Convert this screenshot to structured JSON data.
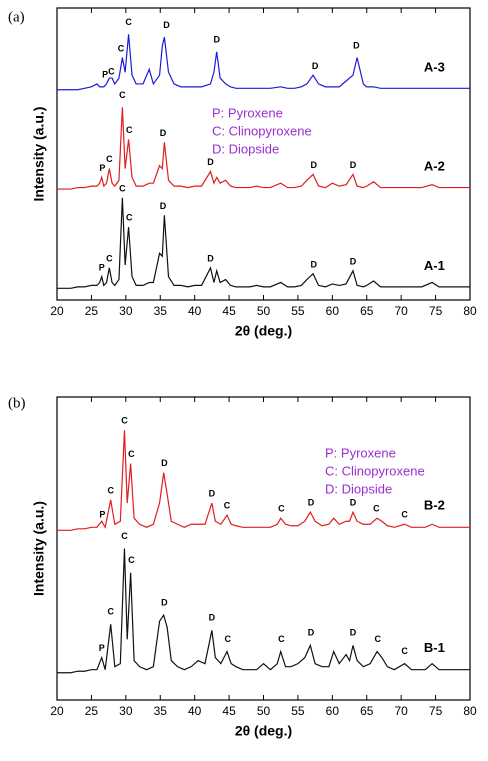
{
  "chart_data": [
    {
      "type": "line",
      "panel_label": "(a)",
      "xlabel": "2θ (deg.)",
      "ylabel": "Intensity (a.u.)",
      "xlim": [
        20,
        80
      ],
      "xticks": [
        20,
        25,
        30,
        35,
        40,
        45,
        50,
        55,
        60,
        65,
        70,
        75,
        80
      ],
      "ylim": [
        0,
        100
      ],
      "key": [
        "P: Pyroxene",
        "C: Clinopyroxene",
        "D: Diopside"
      ],
      "x": [
        20,
        21,
        22,
        23,
        24,
        25,
        25.8,
        26.2,
        26.5,
        26.8,
        27.2,
        27.6,
        28.0,
        28.4,
        29.0,
        29.5,
        29.9,
        30.4,
        30.9,
        31.5,
        32.5,
        33.4,
        34.0,
        34.9,
        35.3,
        35.6,
        36.2,
        37,
        38,
        39,
        40,
        41,
        42.3,
        42.8,
        43.2,
        43.7,
        44.5,
        45.2,
        46,
        47,
        48,
        49,
        50,
        51,
        52.5,
        53.5,
        54.5,
        55.5,
        56.3,
        57.2,
        58,
        59,
        60,
        61,
        62,
        63,
        63.6,
        64.5,
        65,
        66,
        67,
        68,
        69,
        70,
        71,
        72,
        73,
        74.5,
        75.5,
        76,
        77,
        78,
        79,
        80
      ],
      "series": [
        {
          "name": "A-3",
          "color": "#1c1cd8",
          "values": [
            72,
            72,
            72,
            72,
            72.5,
            73,
            74,
            73,
            73,
            73,
            74,
            76,
            76,
            74,
            76,
            83,
            78,
            91,
            77,
            74,
            74,
            79,
            74,
            77,
            87,
            90,
            78,
            74,
            73,
            73,
            73,
            73,
            74,
            78,
            85,
            76,
            74,
            73,
            72.5,
            72.5,
            72.5,
            72.5,
            72.5,
            72.5,
            73,
            72.5,
            72.5,
            73,
            74,
            77,
            74,
            73,
            73,
            73,
            75,
            77,
            83,
            74,
            73,
            73,
            72.5,
            72.5,
            72.5,
            72.5,
            72.5,
            72.5,
            72.5,
            72.5,
            72.5,
            72.5,
            72.5,
            72.5,
            72.5,
            72.5
          ]
        },
        {
          "name": "A-2",
          "color": "#e01e1e",
          "values": [
            38,
            38,
            38,
            38.5,
            38.5,
            39,
            39,
            40,
            42,
            39,
            40,
            45,
            40,
            39,
            41,
            66,
            45,
            55,
            42,
            39,
            39,
            40,
            40,
            46,
            45,
            54,
            41,
            39,
            39,
            38.5,
            39,
            39,
            44,
            40,
            42,
            40,
            41,
            39,
            38.5,
            38.5,
            38.5,
            39,
            38.5,
            38.5,
            40,
            38.5,
            38.5,
            39,
            41,
            43,
            39,
            38.5,
            40,
            39,
            39.5,
            43,
            39,
            38.5,
            39,
            40.5,
            38.5,
            38.5,
            38.5,
            38.5,
            38.5,
            38.5,
            38.5,
            39.5,
            38.5,
            38.5,
            38.5,
            38.5,
            38.5,
            38.5
          ]
        },
        {
          "name": "A-1",
          "color": "#111111",
          "values": [
            4,
            4,
            4,
            4.5,
            4.5,
            5,
            5,
            6,
            8,
            5,
            6,
            11,
            6,
            5,
            7,
            35,
            12,
            25,
            8,
            5,
            5,
            6,
            6,
            16,
            15,
            29,
            8,
            5,
            5,
            4.5,
            5,
            5,
            11,
            6,
            10,
            6,
            7,
            5,
            4.5,
            4.5,
            4.5,
            5,
            4.5,
            4.5,
            6,
            4.5,
            4.5,
            5,
            7,
            9,
            5,
            4.5,
            5.5,
            5,
            5.5,
            10,
            5,
            4.5,
            5,
            6.5,
            4.5,
            4.5,
            4.5,
            4.5,
            4.5,
            4.5,
            4.5,
            6,
            4.5,
            4.5,
            4.5,
            4.5,
            4.5,
            4.5
          ]
        }
      ],
      "annotations": [
        {
          "text": "P",
          "x": 27.0,
          "y": 77
        },
        {
          "text": "C",
          "x": 27.9,
          "y": 78
        },
        {
          "text": "C",
          "x": 29.3,
          "y": 86
        },
        {
          "text": "C",
          "x": 30.4,
          "y": 95
        },
        {
          "text": "D",
          "x": 35.9,
          "y": 94
        },
        {
          "text": "D",
          "x": 43.2,
          "y": 89
        },
        {
          "text": "D",
          "x": 57.5,
          "y": 80
        },
        {
          "text": "D",
          "x": 63.5,
          "y": 87
        },
        {
          "text": "P",
          "x": 26.6,
          "y": 45
        },
        {
          "text": "C",
          "x": 27.6,
          "y": 48
        },
        {
          "text": "C",
          "x": 29.5,
          "y": 70
        },
        {
          "text": "C",
          "x": 30.5,
          "y": 58
        },
        {
          "text": "D",
          "x": 35.4,
          "y": 57
        },
        {
          "text": "D",
          "x": 42.3,
          "y": 47
        },
        {
          "text": "D",
          "x": 57.3,
          "y": 46
        },
        {
          "text": "D",
          "x": 63.0,
          "y": 46
        },
        {
          "text": "P",
          "x": 26.5,
          "y": 11
        },
        {
          "text": "C",
          "x": 27.6,
          "y": 14
        },
        {
          "text": "C",
          "x": 29.5,
          "y": 38
        },
        {
          "text": "C",
          "x": 30.5,
          "y": 28
        },
        {
          "text": "D",
          "x": 35.4,
          "y": 32
        },
        {
          "text": "D",
          "x": 42.3,
          "y": 14
        },
        {
          "text": "D",
          "x": 57.3,
          "y": 12
        },
        {
          "text": "D",
          "x": 63.0,
          "y": 13
        }
      ]
    },
    {
      "type": "line",
      "panel_label": "(b)",
      "xlabel": "2θ (deg.)",
      "ylabel": "Intensity (a.u.)",
      "xlim": [
        20,
        80
      ],
      "xticks": [
        20,
        25,
        30,
        35,
        40,
        45,
        50,
        55,
        60,
        65,
        70,
        75,
        80
      ],
      "ylim": [
        0,
        100
      ],
      "key": [
        "P: Pyroxene",
        "C: Clinopyroxene",
        "D: Diopside"
      ],
      "x": [
        20,
        21,
        22,
        23,
        24,
        25,
        25.8,
        26.5,
        27.0,
        27.8,
        28.4,
        29.2,
        29.8,
        30.2,
        30.7,
        31.2,
        32,
        33,
        34,
        34.9,
        35.5,
        36.0,
        36.6,
        37.5,
        38.5,
        39.5,
        40.5,
        41.5,
        42.5,
        43.0,
        43.8,
        44.7,
        45.3,
        46.0,
        47,
        48,
        49,
        50,
        51,
        52.0,
        52.5,
        53.2,
        54,
        55,
        56.0,
        56.8,
        57.5,
        58.5,
        59.5,
        60.2,
        61,
        62.0,
        62.5,
        63.0,
        63.6,
        64.5,
        65.5,
        66.5,
        67.2,
        68,
        69,
        70.5,
        71.5,
        72.5,
        73.5,
        74.5,
        75.5,
        76.5,
        77.5,
        78.5,
        79.5,
        80
      ],
      "series": [
        {
          "name": "B-2",
          "color": "#e01e1e",
          "values": [
            56,
            56,
            56,
            56.5,
            56.5,
            57,
            57,
            59,
            57,
            66,
            58,
            59,
            89,
            65,
            78,
            60,
            58,
            57,
            58,
            65,
            75,
            68,
            59,
            58,
            57,
            58,
            58,
            58,
            65,
            59,
            58,
            61,
            58,
            57.5,
            57,
            57,
            57,
            57,
            57,
            58,
            60,
            58,
            57.5,
            57.5,
            59,
            62,
            59,
            57.5,
            58,
            60,
            58,
            59,
            59,
            62,
            59,
            58,
            58,
            60,
            59,
            57.5,
            57,
            58,
            57,
            57,
            57,
            58,
            57,
            57,
            57,
            57,
            57,
            57
          ]
        },
        {
          "name": "B-1",
          "color": "#111111",
          "values": [
            9,
            9,
            9,
            9.5,
            9.5,
            10,
            10,
            14,
            10,
            25,
            11,
            12,
            50,
            20,
            42,
            13,
            11,
            10,
            11,
            26,
            28,
            24,
            13,
            11,
            10,
            11,
            13,
            12,
            23,
            14,
            12,
            16,
            12,
            11,
            10,
            10,
            10,
            12,
            10,
            12,
            16,
            11,
            11,
            12,
            14,
            18,
            12,
            11,
            11,
            16,
            12,
            15,
            13,
            18,
            13,
            11,
            12,
            16,
            14,
            11,
            10,
            12,
            10,
            10,
            10,
            12,
            10,
            10,
            10,
            10,
            10,
            10
          ]
        }
      ],
      "annotations": [
        {
          "text": "P",
          "x": 26.6,
          "y": 61
        },
        {
          "text": "C",
          "x": 27.8,
          "y": 69
        },
        {
          "text": "C",
          "x": 29.8,
          "y": 92
        },
        {
          "text": "C",
          "x": 30.8,
          "y": 81
        },
        {
          "text": "D",
          "x": 35.6,
          "y": 78
        },
        {
          "text": "D",
          "x": 42.5,
          "y": 68
        },
        {
          "text": "C",
          "x": 44.7,
          "y": 64
        },
        {
          "text": "C",
          "x": 52.6,
          "y": 63
        },
        {
          "text": "D",
          "x": 56.9,
          "y": 65
        },
        {
          "text": "D",
          "x": 63.0,
          "y": 65
        },
        {
          "text": "C",
          "x": 66.4,
          "y": 63
        },
        {
          "text": "C",
          "x": 70.5,
          "y": 61
        },
        {
          "text": "P",
          "x": 26.5,
          "y": 17
        },
        {
          "text": "C",
          "x": 27.8,
          "y": 29
        },
        {
          "text": "C",
          "x": 29.8,
          "y": 54
        },
        {
          "text": "C",
          "x": 30.8,
          "y": 46
        },
        {
          "text": "D",
          "x": 35.6,
          "y": 32
        },
        {
          "text": "D",
          "x": 42.5,
          "y": 27
        },
        {
          "text": "C",
          "x": 44.8,
          "y": 20
        },
        {
          "text": "C",
          "x": 52.6,
          "y": 20
        },
        {
          "text": "D",
          "x": 56.9,
          "y": 22
        },
        {
          "text": "D",
          "x": 63.0,
          "y": 22
        },
        {
          "text": "C",
          "x": 66.6,
          "y": 20
        },
        {
          "text": "C",
          "x": 70.5,
          "y": 16
        }
      ]
    }
  ]
}
